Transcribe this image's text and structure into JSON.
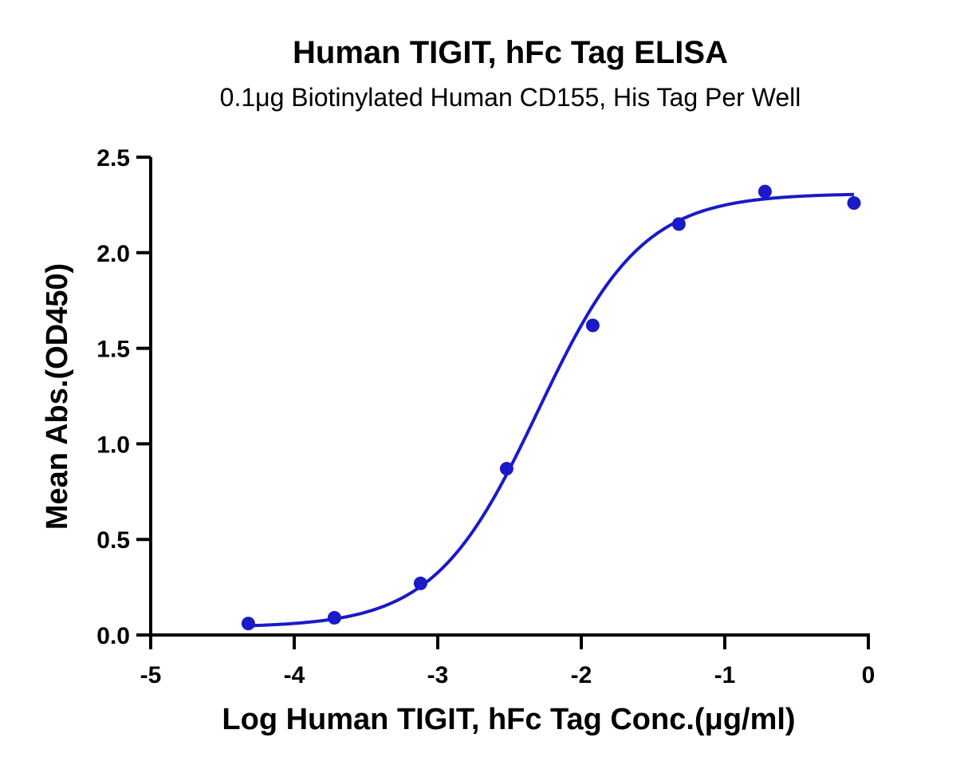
{
  "chart_data": {
    "type": "scatter",
    "title": "Human TIGIT, hFc Tag ELISA",
    "subtitle": "0.1μg Biotinylated Human CD155, His Tag Per Well",
    "xlabel": "Log Human TIGIT, hFc Tag Conc.(μg/ml)",
    "ylabel": "Mean Abs.(OD450)",
    "xlim": [
      -5,
      0
    ],
    "ylim": [
      0,
      2.5
    ],
    "x_ticks": [
      -5,
      -4,
      -3,
      -2,
      -1,
      0
    ],
    "x_tick_labels": [
      "-5",
      "-4",
      "-3",
      "-2",
      "-1",
      "0"
    ],
    "y_ticks": [
      0,
      0.5,
      1.0,
      1.5,
      2.0,
      2.5
    ],
    "y_tick_labels": [
      "0.0",
      "0.5",
      "1.0",
      "1.5",
      "2.0",
      "2.5"
    ],
    "grid": false,
    "color": "#1a1ac8",
    "series": [
      {
        "x": [
          -4.32,
          -3.72,
          -3.12,
          -2.52,
          -1.92,
          -1.32,
          -0.72,
          -0.1
        ],
        "y": [
          0.06,
          0.09,
          0.27,
          0.87,
          1.62,
          2.15,
          2.32,
          2.26
        ]
      }
    ],
    "fit_curve": {
      "model": "4PL",
      "bottom": 0.04,
      "top": 2.31,
      "log_ec50": -2.3,
      "hill_slope": 1.2,
      "x_range": [
        -4.32,
        -0.1
      ]
    }
  }
}
